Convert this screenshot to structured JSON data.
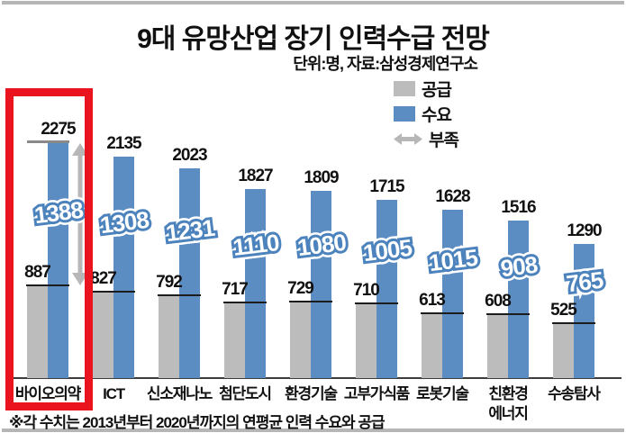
{
  "header": {
    "title": "9대 유망산업 장기 인력수급 전망",
    "subtitle": "단위:명, 자료:삼성경제연구소"
  },
  "legend": {
    "supply_label": "공급",
    "demand_label": "수요",
    "shortage_label": "부족"
  },
  "footnote": "※각 수치는 2013년부터 2020년까지의 연평균 인력 수요와 공급",
  "colors": {
    "demand_blue": "#5b8cc2",
    "supply_gray": "#bcbcbc",
    "shortage_outline_blue": "#4d83bd",
    "arrow_gray": "#b7b7b7",
    "highlight_red": "#e9141d"
  },
  "chart_data": {
    "type": "bar",
    "title": "9대 유망산업 장기 인력수급 전망",
    "unit_note": "단위:명",
    "source_note": "자료:삼성경제연구소",
    "categories": [
      "바이오의약",
      "ICT",
      "신소재나노",
      "첨단도시",
      "환경기술",
      "고부가식품",
      "로봇기술",
      "친환경\n에너지",
      "수송탐사"
    ],
    "series": [
      {
        "name": "공급",
        "values": [
          887,
          827,
          792,
          717,
          729,
          710,
          613,
          608,
          525
        ]
      },
      {
        "name": "수요",
        "values": [
          2275,
          2135,
          2023,
          1827,
          1809,
          1715,
          1628,
          1516,
          1290
        ]
      },
      {
        "name": "부족",
        "values": [
          1388,
          1308,
          1231,
          1110,
          1080,
          1005,
          1015,
          908,
          765
        ]
      }
    ],
    "ylim": [
      0,
      2400
    ],
    "legend_position": "top-right",
    "grid": false,
    "highlighted_category": "바이오의약",
    "shortage_arrow_on_category": "바이오의약"
  }
}
